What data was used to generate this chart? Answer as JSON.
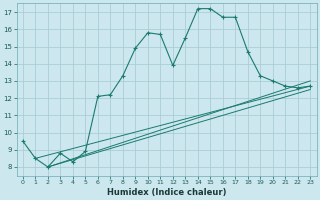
{
  "xlabel": "Humidex (Indice chaleur)",
  "bg_color": "#cce8ee",
  "grid_color": "#b0d8e0",
  "line_color": "#1a7a6e",
  "xlim": [
    -0.5,
    23.5
  ],
  "ylim": [
    7.5,
    17.5
  ],
  "xticks": [
    0,
    1,
    2,
    3,
    4,
    5,
    6,
    7,
    8,
    9,
    10,
    11,
    12,
    13,
    14,
    15,
    16,
    17,
    18,
    19,
    20,
    21,
    22,
    23
  ],
  "yticks": [
    8,
    9,
    10,
    11,
    12,
    13,
    14,
    15,
    16,
    17
  ],
  "main_line": {
    "x": [
      0,
      1,
      2,
      3,
      4,
      5,
      6,
      7,
      8,
      9,
      10,
      11,
      12,
      13,
      14,
      15,
      16,
      17,
      18,
      19,
      20,
      21,
      22,
      23
    ],
    "y": [
      9.5,
      8.5,
      8.0,
      8.8,
      8.3,
      8.9,
      12.1,
      12.2,
      13.3,
      14.9,
      15.8,
      15.7,
      13.9,
      15.5,
      17.2,
      17.2,
      16.7,
      16.7,
      14.7,
      13.3,
      13.0,
      12.7,
      12.6,
      12.7
    ]
  },
  "linear_lines": [
    {
      "x": [
        1,
        23
      ],
      "y": [
        8.5,
        12.7
      ]
    },
    {
      "x": [
        2,
        23
      ],
      "y": [
        8.0,
        12.5
      ]
    },
    {
      "x": [
        2,
        23
      ],
      "y": [
        8.0,
        13.0
      ]
    }
  ]
}
